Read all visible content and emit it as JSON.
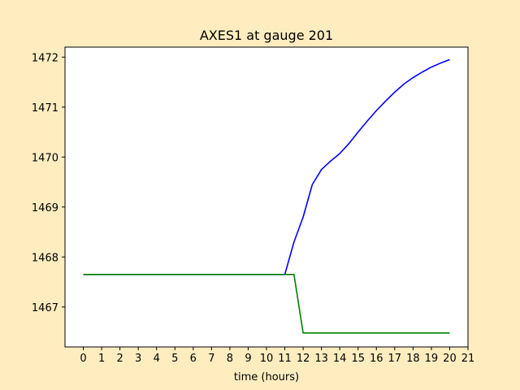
{
  "chart_data": {
    "type": "line",
    "title": "AXES1 at gauge 201",
    "xlabel": "time (hours)",
    "ylabel": "",
    "xlim": [
      -1,
      21
    ],
    "ylim": [
      1466.2,
      1472.2
    ],
    "xticks": [
      0,
      1,
      2,
      3,
      4,
      5,
      6,
      7,
      8,
      9,
      10,
      11,
      12,
      13,
      14,
      15,
      16,
      17,
      18,
      19,
      20,
      21
    ],
    "yticks": [
      1467,
      1468,
      1469,
      1470,
      1471,
      1472
    ],
    "grid": false,
    "background": "#ffedc0",
    "series": [
      {
        "color": "#0000ff",
        "x": [
          0,
          11.0,
          11.5,
          12.0,
          12.5,
          13.0,
          13.5,
          14.0,
          14.5,
          15.0,
          15.5,
          16.0,
          16.5,
          17.0,
          17.5,
          18.0,
          18.5,
          19.0,
          19.5,
          20.0
        ],
        "y": [
          1467.65,
          1467.65,
          1468.3,
          1468.8,
          1469.45,
          1469.75,
          1469.92,
          1470.07,
          1470.27,
          1470.5,
          1470.72,
          1470.93,
          1471.12,
          1471.3,
          1471.46,
          1471.59,
          1471.7,
          1471.8,
          1471.88,
          1471.95
        ]
      },
      {
        "color": "#008000",
        "x": [
          0,
          11.5,
          12.0,
          20.0
        ],
        "y": [
          1467.65,
          1467.65,
          1466.48,
          1466.48
        ]
      }
    ]
  }
}
